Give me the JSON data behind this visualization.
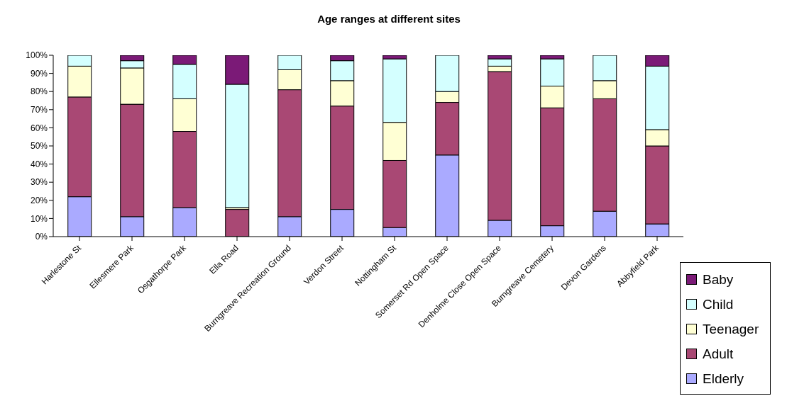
{
  "chart_data": {
    "type": "bar",
    "title": "Age ranges at different sites",
    "stacked": true,
    "categories": [
      "Harlestone St",
      "Ellesmere Park",
      "Osgathorpe Park",
      "Ella Road",
      "Burngreave Recreation Ground",
      "Verdon Street",
      "Nottingham St",
      "Somerset Rd Open Space",
      "Denholme Close Open Space",
      "Burngreave Cemetery",
      "Devon Gardens",
      "Abbyfield Park"
    ],
    "series": [
      {
        "name": "Elderly",
        "color": "#aaaaff",
        "values": [
          22,
          11,
          16,
          0,
          11,
          15,
          5,
          45,
          9,
          6,
          14,
          7
        ]
      },
      {
        "name": "Adult",
        "color": "#a94874",
        "values": [
          55,
          62,
          42,
          15,
          70,
          57,
          37,
          29,
          82,
          65,
          62,
          43
        ]
      },
      {
        "name": "Teenager",
        "color": "#ffffd4",
        "values": [
          17,
          20,
          18,
          1,
          11,
          14,
          21,
          6,
          3,
          12,
          10,
          9
        ]
      },
      {
        "name": "Child",
        "color": "#d4ffff",
        "values": [
          6,
          4,
          19,
          68,
          8,
          11,
          35,
          20,
          4,
          15,
          14,
          35
        ]
      },
      {
        "name": "Baby",
        "color": "#7b1a77",
        "values": [
          0,
          3,
          5,
          16,
          0,
          3,
          2,
          0,
          2,
          2,
          0,
          6
        ]
      }
    ],
    "ylim": [
      0,
      100
    ],
    "yticks": [
      {
        "value": 0,
        "label": "0%"
      },
      {
        "value": 10,
        "label": "10%"
      },
      {
        "value": 20,
        "label": "20%"
      },
      {
        "value": 30,
        "label": "30%"
      },
      {
        "value": 40,
        "label": "40%"
      },
      {
        "value": 50,
        "label": "50%"
      },
      {
        "value": 60,
        "label": "60%"
      },
      {
        "value": 70,
        "label": "70%"
      },
      {
        "value": 80,
        "label": "80%"
      },
      {
        "value": 90,
        "label": "90%"
      },
      {
        "value": 100,
        "label": "100%"
      }
    ],
    "grid": false,
    "legend": "bottom right"
  }
}
